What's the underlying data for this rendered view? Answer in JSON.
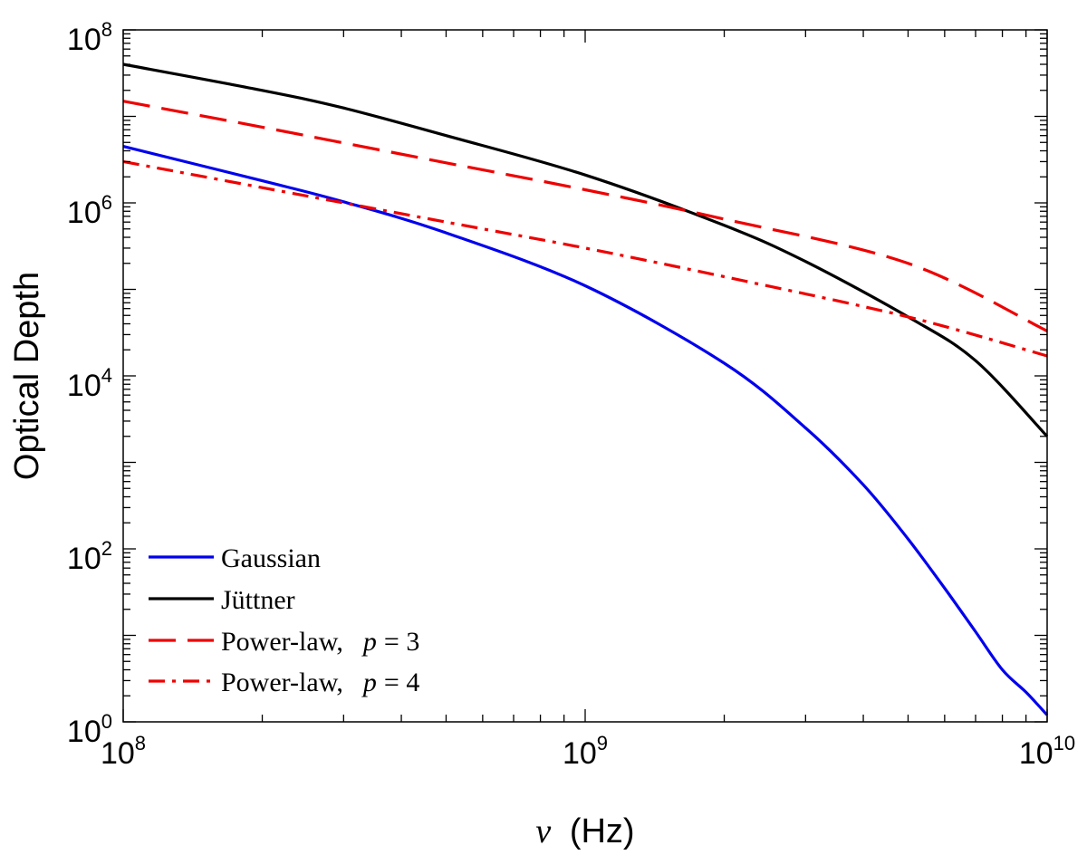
{
  "chart_data": {
    "type": "line",
    "title": "",
    "xlabel_symbol": "ν",
    "xlabel_unit": "(Hz)",
    "ylabel": "Optical Depth",
    "xscale": "log",
    "yscale": "log",
    "xlim": [
      100000000,
      10000000000
    ],
    "ylim": [
      1,
      100000000
    ],
    "xticks": [
      {
        "value": 100000000,
        "base": "10",
        "exp": "8"
      },
      {
        "value": 1000000000,
        "base": "10",
        "exp": "9"
      },
      {
        "value": 10000000000,
        "base": "10",
        "exp": "10"
      }
    ],
    "yticks": [
      {
        "value": 1,
        "base": "10",
        "exp": "0"
      },
      {
        "value": 100,
        "base": "10",
        "exp": "2"
      },
      {
        "value": 10000,
        "base": "10",
        "exp": "4"
      },
      {
        "value": 1000000,
        "base": "10",
        "exp": "6"
      },
      {
        "value": 100000000,
        "base": "10",
        "exp": "8"
      }
    ],
    "grid": false,
    "legend_position": "bottom-left",
    "series": [
      {
        "name": "Gaussian",
        "color": "#0000ee",
        "dash": "solid",
        "x": [
          100000000,
          200000000,
          300000000,
          500000000,
          1000000000,
          2000000000,
          3000000000,
          4000000000,
          5000000000,
          6000000000,
          7000000000,
          8000000000,
          9000000000,
          10000000000
        ],
        "y": [
          4500000,
          1800000,
          1030000,
          450000,
          110000,
          14000,
          2500,
          550,
          130,
          35,
          11,
          4,
          2.2,
          1.2
        ]
      },
      {
        "name": "Jüttner",
        "color": "#000000",
        "dash": "solid",
        "x": [
          100000000,
          200000000,
          300000000,
          500000000,
          1000000000,
          2000000000,
          3000000000,
          5000000000,
          7000000000,
          10000000000
        ],
        "y": [
          40000000,
          20000000,
          12500000,
          6000000,
          2100000,
          550000,
          210000,
          48000,
          15000,
          2000
        ]
      },
      {
        "name": "Power-law, p = 3",
        "label_main": "Power-law,",
        "label_p": "p",
        "label_value": "= 3",
        "color": "#ee0000",
        "dash": "dashed",
        "x": [
          100000000,
          200000000,
          500000000,
          1000000000,
          2000000000,
          5000000000,
          10000000000
        ],
        "y": [
          15000000,
          7500000,
          2900000,
          1420000,
          650000,
          200000,
          33000
        ]
      },
      {
        "name": "Power-law, p = 4",
        "label_main": "Power-law,",
        "label_p": "p",
        "label_value": "= 4",
        "color": "#ee0000",
        "dash": "dashdot",
        "x": [
          100000000,
          200000000,
          300000000,
          500000000,
          1000000000,
          2000000000,
          5000000000,
          10000000000
        ],
        "y": [
          3000000,
          1500000,
          1000000,
          600000,
          300000,
          140000,
          48000,
          17000
        ]
      }
    ]
  }
}
